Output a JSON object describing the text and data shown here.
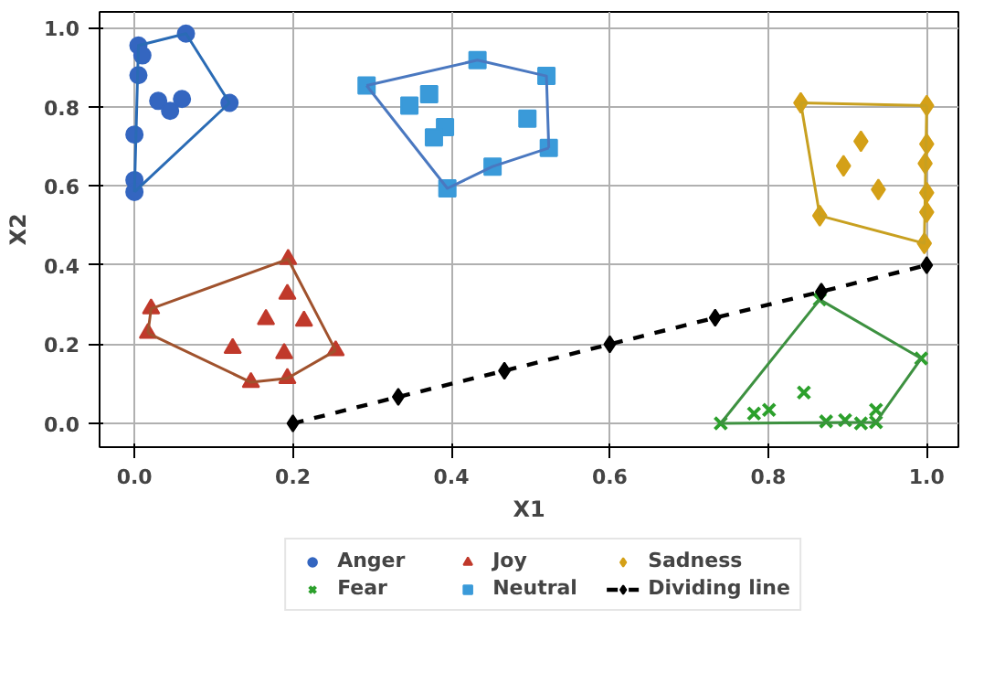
{
  "chart_data": {
    "type": "scatter",
    "xlabel": "X1",
    "ylabel": "X2",
    "xlim": [
      -0.044,
      1.04
    ],
    "ylim": [
      -0.06,
      1.04
    ],
    "xticks": [
      {
        "value": 0,
        "label": "0.0"
      },
      0.2,
      0.4,
      0.6,
      0.8,
      {
        "value": 1,
        "label": "1.0"
      }
    ],
    "yticks": [
      {
        "value": 0,
        "label": "0.0"
      },
      0.2,
      0.4,
      0.6,
      0.8,
      {
        "value": 1,
        "label": "1.0"
      }
    ],
    "grid": true,
    "legend": "bottom",
    "series": [
      {
        "name": "Anger",
        "color": "#3466c0",
        "marker": "circle",
        "x": [
          0.005,
          0.01,
          0.005,
          0.065,
          0.03,
          0.06,
          0.045,
          0.12,
          0.0,
          0.0,
          0.0
        ],
        "values": [
          0.955,
          0.93,
          0.88,
          0.985,
          0.815,
          0.82,
          0.79,
          0.81,
          0.73,
          0.615,
          0.585
        ]
      },
      {
        "name": "Fear",
        "color": "#2ca02c",
        "marker": "cross",
        "x": [
          0.74,
          0.865,
          0.993,
          0.936,
          0.845,
          0.782,
          0.801,
          0.873,
          0.897,
          0.917,
          0.936
        ],
        "values": [
          0.0,
          0.313,
          0.164,
          0.003,
          0.078,
          0.025,
          0.034,
          0.005,
          0.008,
          0.0,
          0.034
        ]
      },
      {
        "name": "Joy",
        "color": "#c0392b",
        "marker": "triangle",
        "x": [
          0.194,
          0.021,
          0.017,
          0.147,
          0.193,
          0.254,
          0.193,
          0.166,
          0.214,
          0.124,
          0.189
        ],
        "values": [
          0.415,
          0.29,
          0.228,
          0.104,
          0.114,
          0.184,
          0.327,
          0.263,
          0.259,
          0.19,
          0.177
        ]
      },
      {
        "name": "Neutral",
        "color": "#3a9ad9",
        "marker": "square",
        "x": [
          0.293,
          0.433,
          0.52,
          0.523,
          0.452,
          0.395,
          0.372,
          0.347,
          0.392,
          0.378,
          0.496
        ],
        "values": [
          0.854,
          0.918,
          0.878,
          0.696,
          0.649,
          0.594,
          0.832,
          0.803,
          0.749,
          0.723,
          0.77
        ]
      },
      {
        "name": "Sadness",
        "color": "#d4a017",
        "marker": "diamond",
        "x": [
          0.841,
          1.0,
          1.0,
          0.998,
          1.0,
          1.0,
          0.997,
          0.865,
          0.917,
          0.895,
          0.939
        ],
        "values": [
          0.81,
          0.803,
          0.706,
          0.657,
          0.583,
          0.534,
          0.455,
          0.525,
          0.713,
          0.651,
          0.591
        ]
      },
      {
        "type": "line",
        "color": "#2a6bb5",
        "x": [
          0.0,
          0.005,
          0.065,
          0.12
        ],
        "values": [
          0.585,
          0.955,
          0.985,
          0.81
        ]
      },
      {
        "type": "line",
        "color": "#2a6bb5",
        "x": [
          0.0,
          0.12
        ],
        "values": [
          0.585,
          0.81
        ]
      },
      {
        "type": "line",
        "color": "#3d9140",
        "x": [
          0.74,
          0.865,
          0.993
        ],
        "values": [
          0.0,
          0.313,
          0.164
        ]
      },
      {
        "type": "line",
        "color": "#3d9140",
        "x": [
          0.74,
          0.936,
          0.993
        ],
        "values": [
          0.0,
          0.003,
          0.164
        ]
      },
      {
        "type": "line",
        "color": "#a0522d",
        "x": [
          0.017,
          0.021,
          0.194,
          0.254
        ],
        "values": [
          0.228,
          0.29,
          0.415,
          0.184
        ]
      },
      {
        "type": "line",
        "color": "#a0522d",
        "x": [
          0.017,
          0.147,
          0.193,
          0.254
        ],
        "values": [
          0.228,
          0.104,
          0.114,
          0.184
        ]
      },
      {
        "type": "line",
        "color": "#4a78c0",
        "x": [
          0.293,
          0.433,
          0.52,
          0.523
        ],
        "values": [
          0.854,
          0.918,
          0.878,
          0.696
        ]
      },
      {
        "type": "line",
        "color": "#4a78c0",
        "x": [
          0.293,
          0.395,
          0.452,
          0.523
        ],
        "values": [
          0.854,
          0.594,
          0.649,
          0.696
        ]
      },
      {
        "type": "line",
        "color": "#c8a020",
        "x": [
          0.841,
          1.0
        ],
        "values": [
          0.81,
          0.803
        ]
      },
      {
        "type": "line",
        "color": "#c8a020",
        "x": [
          0.841,
          0.865,
          0.997,
          1.0
        ],
        "values": [
          0.81,
          0.525,
          0.455,
          0.803
        ]
      },
      {
        "name": "Dividing line",
        "type": "line",
        "color": "#000000",
        "marker": "diamond",
        "line_style": "dashed",
        "x": [
          0.2,
          0.333,
          0.467,
          0.6,
          0.733,
          0.867,
          1.0
        ],
        "values": [
          0.0,
          0.067,
          0.133,
          0.2,
          0.267,
          0.333,
          0.4
        ]
      }
    ]
  }
}
